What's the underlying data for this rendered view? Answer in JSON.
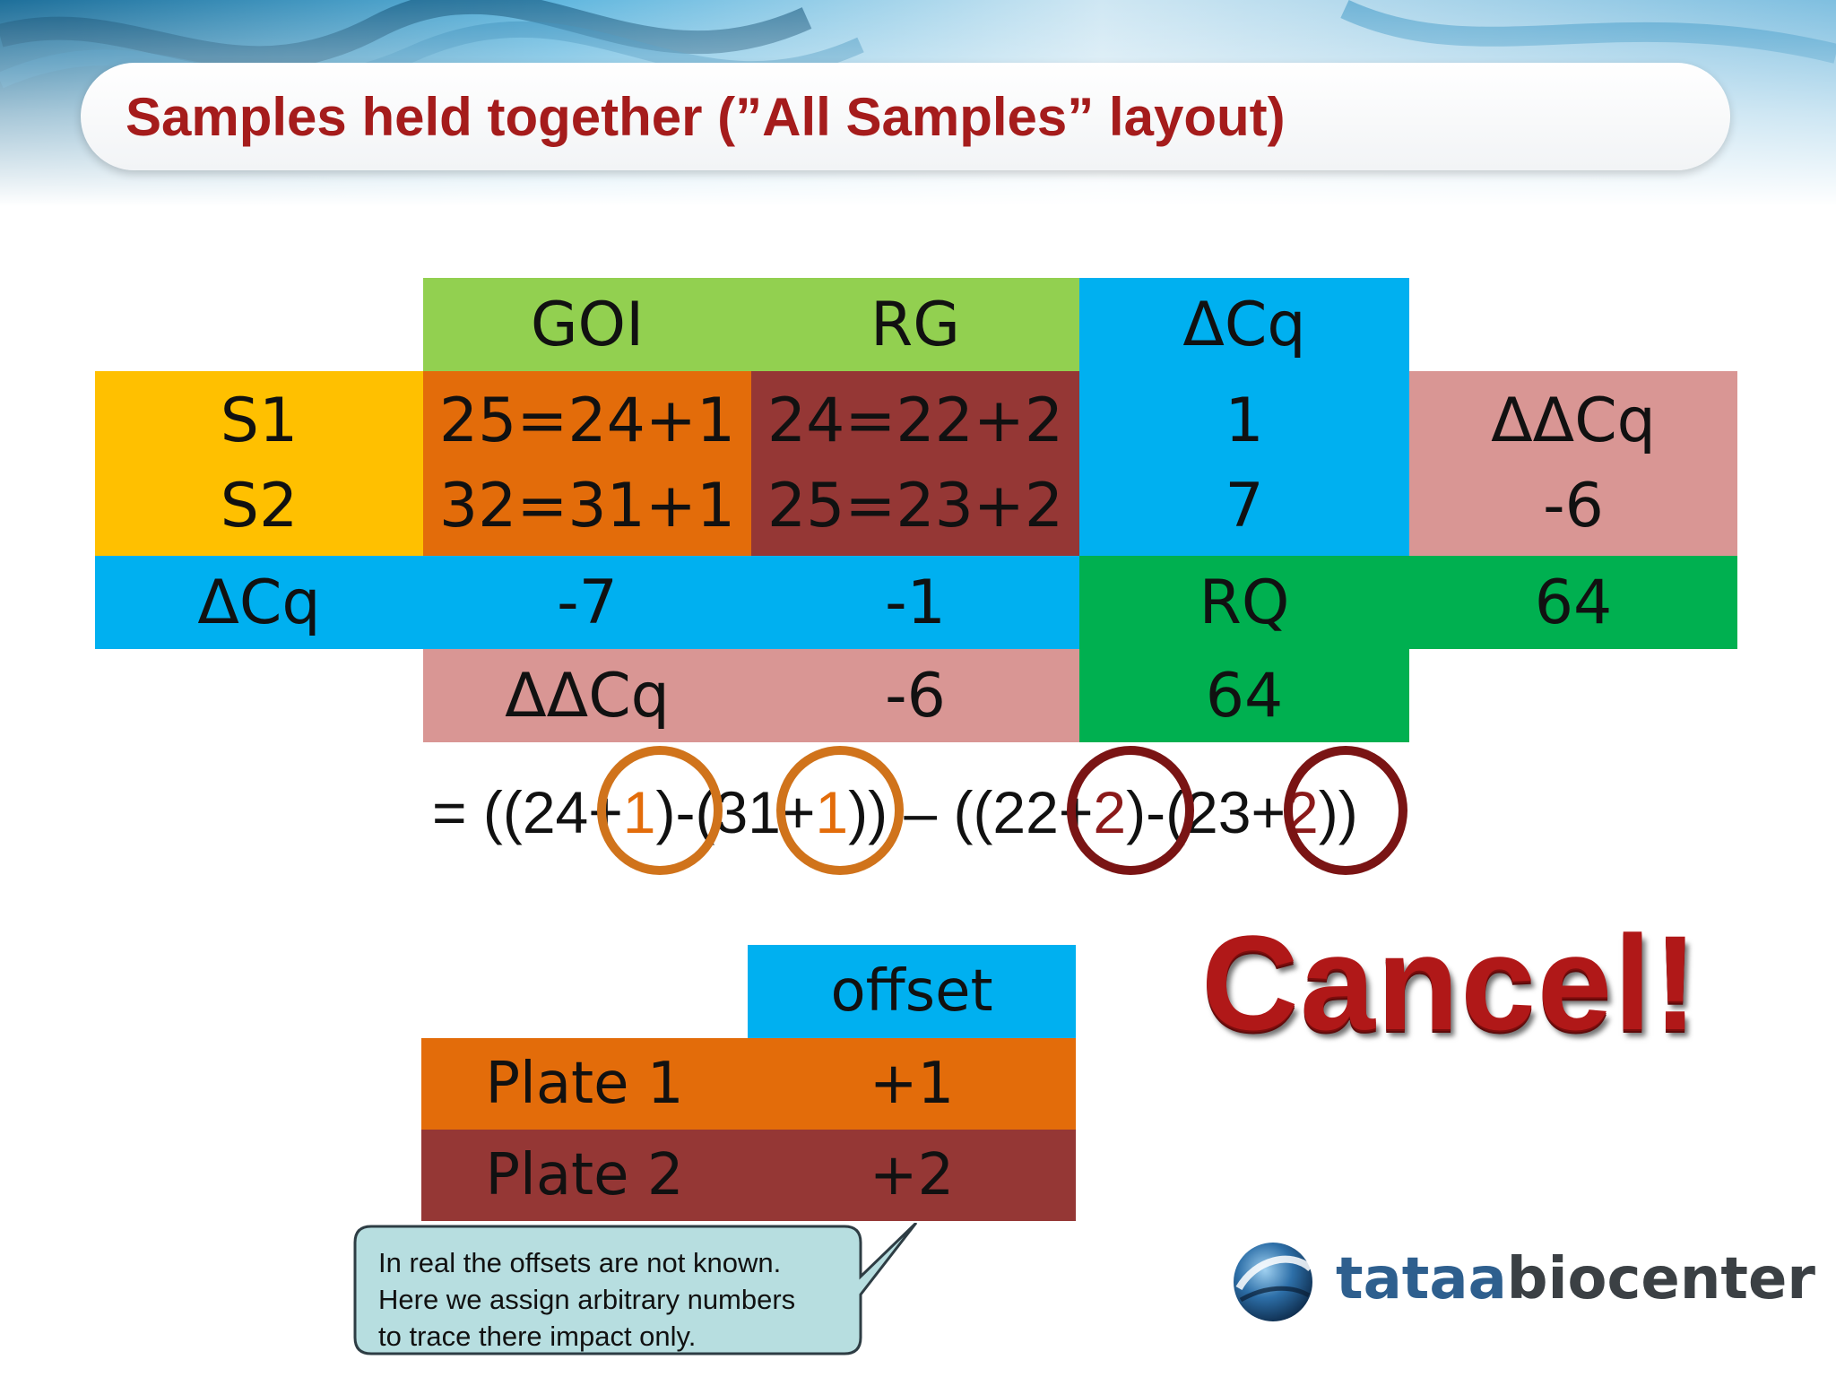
{
  "title": "Samples held together (”All Samples” layout)",
  "main_table": {
    "col_goi": "GOI",
    "col_rg": "RG",
    "col_dcq": "ΔCq",
    "s1_label": "S1",
    "s2_label": "S2",
    "s1_goi": "25=24+1",
    "s2_goi": "32=31+1",
    "s1_rg": "24=22+2",
    "s2_rg": "25=23+2",
    "s1_dcq": "1",
    "s2_dcq": "7",
    "ddcq_right_label": "ΔΔCq",
    "ddcq_right_value": "-6",
    "row_dcq_label": "ΔCq",
    "row_dcq_goi": "-7",
    "row_dcq_rg": "-1",
    "rq_label_1": "RQ",
    "rq_value_1": "64",
    "ddcq_bottom_label": "ΔΔCq",
    "ddcq_bottom_value": "-6",
    "rq_value_2": "64"
  },
  "formula": {
    "p1": "= ((24",
    "p2": "+",
    "p3": "1",
    "p4": ")-(31",
    "p5": "+",
    "p6": "1",
    "p7": ")) – ((22",
    "p8": "+",
    "p9": "2",
    "p10": ")-(23",
    "p11": "+",
    "p12": "2",
    "p13": "))"
  },
  "offset_table": {
    "header": "offset",
    "plate1_label": "Plate 1",
    "plate1_value": "+1",
    "plate2_label": "Plate 2",
    "plate2_value": "+2"
  },
  "cancel_text": "Cancel!",
  "callout": {
    "line1": "In real the offsets are not known.",
    "line2": "Here we assign arbitrary numbers",
    "line3": "to trace there impact only."
  },
  "logo": {
    "part1": "tataa",
    "part2": "biocenter"
  },
  "colors": {
    "title": "#a51c1c",
    "yellow": "#ffc000",
    "green": "#92d050",
    "blue": "#00b0f0",
    "orange": "#e36c0a",
    "maroon": "#953735",
    "pink": "#d99694",
    "dark_green": "#00b050",
    "callout_fill": "#b7dee0"
  }
}
